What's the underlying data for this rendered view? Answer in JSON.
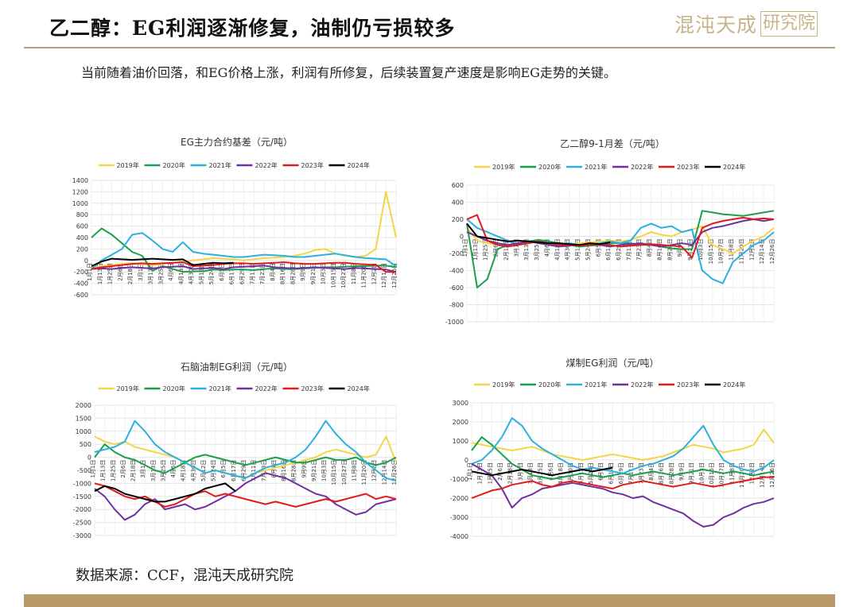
{
  "header": {
    "title": "乙二醇：EG利润逐渐修复，油制仍亏损较多",
    "logo_text": "混沌天成",
    "logo_box": "研究院"
  },
  "subtitle": "当前随着油价回落，和EG价格上涨，利润有所修复，后续装置复产速度是影响EG走势的关键。",
  "source": "数据来源：CCF，混沌天成研究院",
  "colors": {
    "gold": "#b9996a",
    "series": [
      "#f5d547",
      "#1aa04a",
      "#2bb0e0",
      "#7030a0",
      "#e31a1c",
      "#000000"
    ]
  },
  "chart_data": [
    {
      "type": "line",
      "title": "EG主力合约基差（元/吨）",
      "legend_position": "top",
      "ylim": [
        -600,
        1400
      ],
      "yticks": [
        -600,
        -400,
        -200,
        0,
        200,
        400,
        600,
        800,
        1000,
        1200,
        1400
      ],
      "xticks": [
        "1月1日",
        "1月13日",
        "1月25日",
        "2月6日",
        "2月18日",
        "3月1日",
        "3月13日",
        "3月25日",
        "4月6日",
        "4月18日",
        "4月30日",
        "5月12日",
        "5月24日",
        "6月5日",
        "6月17日",
        "6月29日",
        "7月11日",
        "7月23日",
        "8月4日",
        "8月16日",
        "8月28日",
        "9月9日",
        "9月21日",
        "10月3日",
        "10月15日",
        "10月27日",
        "11月8日",
        "11月20日",
        "12月2日",
        "12月14日",
        "12月26日"
      ],
      "series": [
        {
          "name": "2019年",
          "color": "#f5d547",
          "values": [
            -120,
            -100,
            -80,
            -60,
            -50,
            -70,
            -90,
            -60,
            -40,
            -20,
            0,
            20,
            40,
            30,
            20,
            0,
            20,
            40,
            50,
            60,
            80,
            120,
            180,
            200,
            120,
            80,
            60,
            80,
            200,
            1200,
            400
          ]
        },
        {
          "name": "2020年",
          "color": "#1aa04a",
          "values": [
            400,
            560,
            450,
            300,
            150,
            80,
            -180,
            -100,
            -150,
            -200,
            -190,
            -190,
            -160,
            -170,
            -160,
            -160,
            -170,
            -150,
            -140,
            -150,
            -150,
            -140,
            -130,
            -120,
            -120,
            -110,
            -100,
            -100,
            -90,
            -90,
            -120
          ]
        },
        {
          "name": "2021年",
          "color": "#2bb0e0",
          "values": [
            -150,
            0,
            100,
            200,
            450,
            480,
            350,
            200,
            150,
            320,
            150,
            120,
            100,
            80,
            60,
            60,
            80,
            100,
            90,
            80,
            60,
            60,
            80,
            100,
            120,
            90,
            60,
            40,
            30,
            20,
            -100
          ]
        },
        {
          "name": "2022年",
          "color": "#7030a0",
          "values": [
            -150,
            -140,
            -150,
            -130,
            -120,
            -130,
            -140,
            -120,
            -110,
            -100,
            -150,
            -140,
            -130,
            -150,
            -120,
            -110,
            -100,
            -90,
            -120,
            -130,
            -140,
            -130,
            -120,
            -130,
            -140,
            -150,
            -130,
            -140,
            -150,
            -160,
            -200
          ]
        },
        {
          "name": "2023年",
          "color": "#e31a1c",
          "values": [
            -150,
            -120,
            -100,
            -80,
            -60,
            -50,
            -60,
            -50,
            -40,
            -30,
            -100,
            -90,
            -80,
            -60,
            -50,
            -50,
            -60,
            -50,
            -40,
            -30,
            -50,
            -60,
            -60,
            -50,
            -40,
            -40,
            -60,
            -70,
            -80,
            -200,
            -200
          ]
        },
        {
          "name": "2024年",
          "color": "#000000",
          "values": [
            -100,
            -20,
            30,
            20,
            10,
            20,
            30,
            20,
            10,
            20,
            -80,
            -60,
            -40,
            -50,
            -40
          ]
        }
      ]
    },
    {
      "type": "line",
      "title": "乙二醇9-1月差（元/吨）",
      "legend_position": "top",
      "ylim": [
        -1000,
        600
      ],
      "yticks": [
        -1000,
        -800,
        -600,
        -400,
        -200,
        0,
        200,
        400,
        600
      ],
      "xticks": [
        "1月1日",
        "1月13日",
        "1月25日",
        "2月6日",
        "2月18日",
        "3月1日",
        "3月13日",
        "3月25日",
        "4月6日",
        "4月18日",
        "4月30日",
        "5月12日",
        "5月24日",
        "6月5日",
        "6月17日",
        "6月29日",
        "7月11日",
        "7月23日",
        "8月4日",
        "8月16日",
        "8月28日",
        "9月9日",
        "9月21日",
        "10月3日",
        "10月15日",
        "10月27日",
        "11月8日",
        "11月20日",
        "12月2日",
        "12月14日",
        "12月26日"
      ],
      "series": [
        {
          "name": "2019年",
          "color": "#f5d547",
          "values": [
            100,
            -50,
            -80,
            -100,
            -120,
            -100,
            -80,
            -60,
            -80,
            -100,
            -90,
            -80,
            -70,
            -60,
            -50,
            -60,
            -40,
            0,
            50,
            20,
            0,
            50,
            80,
            120,
            -100,
            -150,
            -200,
            -120,
            -50,
            0,
            100
          ]
        },
        {
          "name": "2020年",
          "color": "#1aa04a",
          "values": [
            150,
            -600,
            -500,
            -150,
            -100,
            -80,
            -60,
            -40,
            -60,
            -80,
            -100,
            -120,
            -110,
            -100,
            -80,
            -80,
            -80,
            -100,
            -100,
            -120,
            -140,
            -150,
            -150,
            300,
            280,
            260,
            250,
            240,
            260,
            280,
            300
          ]
        },
        {
          "name": "2021年",
          "color": "#2bb0e0",
          "values": [
            200,
            100,
            50,
            0,
            -50,
            -100,
            -80,
            -60,
            -80,
            -100,
            -80,
            -100,
            -100,
            -80,
            -60,
            -80,
            -50,
            100,
            150,
            100,
            120,
            50,
            80,
            -400,
            -500,
            -550,
            -300,
            -200,
            -100,
            -50,
            50
          ]
        },
        {
          "name": "2022年",
          "color": "#7030a0",
          "values": [
            50,
            0,
            -50,
            -80,
            -100,
            -80,
            -60,
            -80,
            -100,
            -120,
            -110,
            -100,
            -90,
            -100,
            -120,
            -100,
            -90,
            -80,
            -100,
            -120,
            -100,
            -80,
            -100,
            50,
            100,
            120,
            150,
            180,
            200,
            180,
            200
          ]
        },
        {
          "name": "2023年",
          "color": "#e31a1c",
          "values": [
            200,
            250,
            -50,
            -100,
            -120,
            -100,
            -80,
            -60,
            -80,
            -100,
            -100,
            -110,
            -100,
            -90,
            -100,
            -120,
            -110,
            -100,
            -90,
            -100,
            -110,
            -120,
            -250,
            100,
            150,
            180,
            200,
            220,
            200,
            210,
            200
          ]
        },
        {
          "name": "2024年",
          "color": "#000000",
          "values": [
            150,
            0,
            -20,
            -40,
            -60,
            -50,
            -60,
            -70,
            -80,
            -80,
            -90,
            -100,
            -80,
            -90,
            -70
          ]
        }
      ]
    },
    {
      "type": "line",
      "title": "石脑油制EG利润（元/吨）",
      "legend_position": "top",
      "ylim": [
        -3000,
        2000
      ],
      "yticks": [
        -3000,
        -2500,
        -2000,
        -1500,
        -1000,
        -500,
        0,
        500,
        1000,
        1500,
        2000
      ],
      "xticks": [
        "1月1日",
        "1月13日",
        "1月25日",
        "2月6日",
        "2月18日",
        "3月1日",
        "3月13日",
        "3月25日",
        "4月6日",
        "4月18日",
        "4月30日",
        "5月12日",
        "5月24日",
        "6月5日",
        "6月17日",
        "6月29日",
        "7月11日",
        "7月23日",
        "8月4日",
        "8月16日",
        "8月28日",
        "9月9日",
        "9月21日",
        "10月3日",
        "10月15日",
        "10月27日",
        "11月8日",
        "11月20日",
        "12月2日",
        "12月14日",
        "12月26日"
      ],
      "series": [
        {
          "name": "2019年",
          "color": "#f5d547",
          "values": [
            800,
            600,
            500,
            600,
            400,
            300,
            200,
            100,
            0,
            -200,
            -400,
            -600,
            -500,
            -600,
            -700,
            -800,
            -600,
            -500,
            -400,
            -300,
            -200,
            -100,
            0,
            200,
            300,
            200,
            100,
            0,
            100,
            800,
            -200
          ]
        },
        {
          "name": "2020年",
          "color": "#1aa04a",
          "values": [
            0,
            500,
            200,
            0,
            -100,
            -300,
            -500,
            -600,
            -400,
            -200,
            0,
            100,
            0,
            -100,
            -200,
            -300,
            -200,
            -100,
            0,
            -100,
            -200,
            -200,
            -100,
            0,
            -100,
            -100,
            0,
            -200,
            -300,
            -200,
            0
          ]
        },
        {
          "name": "2021年",
          "color": "#2bb0e0",
          "values": [
            200,
            300,
            400,
            600,
            1400,
            1000,
            500,
            200,
            0,
            -200,
            -400,
            -600,
            -500,
            -600,
            -700,
            -800,
            -600,
            -400,
            -300,
            -200,
            0,
            300,
            800,
            1400,
            900,
            500,
            200,
            -200,
            -500,
            -800,
            -900
          ]
        },
        {
          "name": "2022年",
          "color": "#7030a0",
          "values": [
            -1200,
            -1500,
            -2000,
            -2400,
            -2200,
            -1800,
            -1600,
            -2000,
            -1900,
            -1800,
            -2000,
            -1900,
            -1700,
            -1500,
            -1300,
            -1000,
            -800,
            -600,
            -700,
            -800,
            -1000,
            -1200,
            -1400,
            -1500,
            -1800,
            -2000,
            -2200,
            -2100,
            -1800,
            -1700,
            -1600
          ]
        },
        {
          "name": "2023年",
          "color": "#e31a1c",
          "values": [
            -1000,
            -1100,
            -1300,
            -1500,
            -1600,
            -1500,
            -1700,
            -1900,
            -1800,
            -1600,
            -1400,
            -1300,
            -1500,
            -1400,
            -1500,
            -1600,
            -1700,
            -1800,
            -1700,
            -1800,
            -1900,
            -1800,
            -1700,
            -1600,
            -1700,
            -1600,
            -1500,
            -1400,
            -1600,
            -1500,
            -1600
          ]
        },
        {
          "name": "2024年",
          "color": "#000000",
          "values": [
            -1300,
            -1100,
            -1200,
            -1400,
            -1500,
            -1600,
            -1700,
            -1700,
            -1600,
            -1500,
            -1400,
            -1200,
            -1100,
            -1000,
            -1300
          ]
        }
      ]
    },
    {
      "type": "line",
      "title": "煤制EG利润（元/吨）",
      "legend_position": "top",
      "ylim": [
        -4000,
        3000
      ],
      "yticks": [
        -4000,
        -3000,
        -2000,
        -1000,
        0,
        1000,
        2000,
        3000
      ],
      "xticks": [
        "1月1日",
        "1月13日",
        "1月25日",
        "2月6日",
        "2月18日",
        "3月1日",
        "3月13日",
        "3月25日",
        "4月6日",
        "4月18日",
        "4月30日",
        "5月12日",
        "5月24日",
        "6月5日",
        "6月17日",
        "6月29日",
        "7月11日",
        "7月23日",
        "8月4日",
        "8月16日",
        "8月28日",
        "9月9日",
        "9月21日",
        "10月3日",
        "10月15日",
        "10月27日",
        "11月8日",
        "11月20日",
        "12月2日",
        "12月14日",
        "12月26日"
      ],
      "series": [
        {
          "name": "2019年",
          "color": "#f5d547",
          "values": [
            900,
            800,
            700,
            600,
            500,
            600,
            700,
            500,
            300,
            200,
            100,
            0,
            100,
            200,
            300,
            200,
            100,
            0,
            100,
            200,
            400,
            600,
            800,
            700,
            600,
            400,
            500,
            600,
            800,
            1600,
            900
          ]
        },
        {
          "name": "2020年",
          "color": "#1aa04a",
          "values": [
            500,
            1200,
            800,
            300,
            -200,
            -500,
            -800,
            -900,
            -1000,
            -900,
            -800,
            -700,
            -800,
            -900,
            -800,
            -700,
            -800,
            -700,
            -600,
            -700,
            -800,
            -700,
            -600,
            -500,
            -600,
            -700,
            -600,
            -700,
            -800,
            -700,
            -600
          ]
        },
        {
          "name": "2021年",
          "color": "#2bb0e0",
          "values": [
            -200,
            0,
            500,
            1200,
            2200,
            1800,
            1000,
            600,
            300,
            0,
            -300,
            -500,
            -400,
            -500,
            -600,
            -700,
            -500,
            -300,
            -200,
            0,
            200,
            600,
            1200,
            1800,
            800,
            0,
            -300,
            -500,
            -600,
            -400,
            0
          ]
        },
        {
          "name": "2022年",
          "color": "#7030a0",
          "values": [
            -200,
            -500,
            -800,
            -1500,
            -2500,
            -2000,
            -1800,
            -1500,
            -1400,
            -1300,
            -1200,
            -1300,
            -1400,
            -1500,
            -1700,
            -1800,
            -2000,
            -1900,
            -2200,
            -2400,
            -2600,
            -2800,
            -3200,
            -3500,
            -3400,
            -3000,
            -2800,
            -2500,
            -2300,
            -2200,
            -2000
          ]
        },
        {
          "name": "2023年",
          "color": "#e31a1c",
          "values": [
            -2000,
            -1800,
            -1600,
            -1500,
            -1300,
            -1200,
            -1100,
            -1300,
            -1400,
            -1200,
            -1100,
            -1200,
            -1300,
            -1400,
            -1500,
            -1300,
            -1200,
            -1100,
            -1200,
            -1300,
            -1400,
            -1300,
            -1200,
            -1300,
            -1400,
            -1300,
            -1200,
            -1100,
            -1000,
            -900,
            -900
          ]
        },
        {
          "name": "2024年",
          "color": "#000000",
          "values": [
            -600,
            -700,
            -800,
            -700,
            -600,
            -500,
            -600,
            -700,
            -800,
            -700,
            -600,
            -500,
            -600,
            -500,
            -400
          ]
        }
      ]
    }
  ]
}
